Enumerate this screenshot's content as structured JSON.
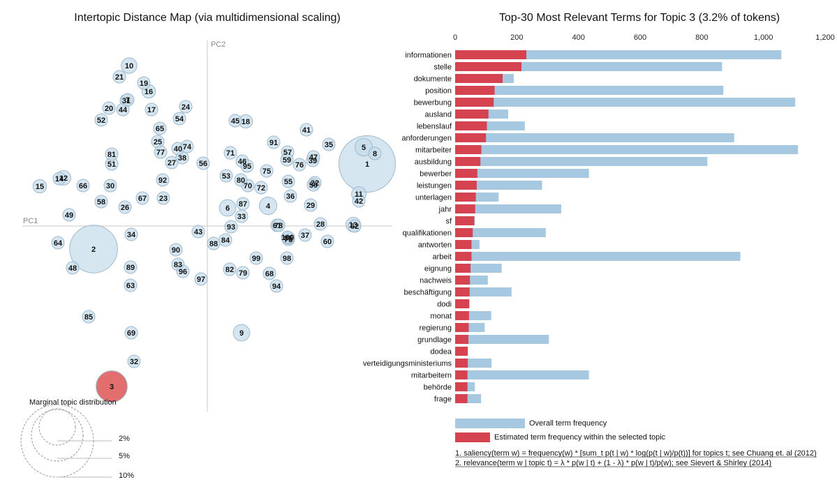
{
  "left_panel": {
    "title": "Intertopic Distance Map (via multidimensional scaling)",
    "pc1": "PC1",
    "pc2": "PC2",
    "marginal_title": "Marginal topic distribution",
    "marginal_labels": [
      "2%",
      "5%",
      "10%"
    ],
    "selected_topic": 3,
    "colors": {
      "bubble": "#c5dbea",
      "bubble_stroke": "#9fb8cc",
      "selected": "#e06666"
    }
  },
  "right_panel": {
    "title": "Top-30 Most Relevant Terms for Topic 3 (3.2% of tokens)",
    "legend_overall": "Overall term frequency",
    "legend_estimated": "Estimated term frequency within the selected topic",
    "footnote1": "1. saliency(term w) = frequency(w) * [sum_t p(t | w) * log(p(t | w)/p(t))] for topics t; see Chuang et. al (2012)",
    "footnote2": "2. relevance(term w | topic t) = λ * p(w | t) + (1 - λ) * p(w | t)/p(w); see Sievert & Shirley (2014)",
    "colors": {
      "overall": "#a6c8e0",
      "estimated": "#d4434f"
    }
  },
  "chart_data": [
    {
      "type": "scatter",
      "title": "Intertopic Distance Map (via multidimensional scaling)",
      "xlabel": "PC1",
      "ylabel": "PC2",
      "points": [
        {
          "topic": "1",
          "x": 229,
          "y": 89,
          "size": 10.5
        },
        {
          "topic": "2",
          "x": -163,
          "y": -33,
          "size": 7.5
        },
        {
          "topic": "3",
          "x": -137,
          "y": -230,
          "size": 3.2
        },
        {
          "topic": "4",
          "x": 87,
          "y": 29,
          "size": 1.0
        },
        {
          "topic": "5",
          "x": 224,
          "y": 113,
          "size": 1.0
        },
        {
          "topic": "6",
          "x": 29,
          "y": 26,
          "size": 0.9
        },
        {
          "topic": "7",
          "x": -114,
          "y": 181,
          "size": 0.3
        },
        {
          "topic": "8",
          "x": 240,
          "y": 104,
          "size": 0.4
        },
        {
          "topic": "9",
          "x": 49,
          "y": -153,
          "size": 0.9
        },
        {
          "topic": "10",
          "x": -112,
          "y": 230,
          "size": 0.8
        },
        {
          "topic": "11",
          "x": 217,
          "y": 46,
          "size": 0.7
        },
        {
          "topic": "12",
          "x": -206,
          "y": 69,
          "size": 0.7
        },
        {
          "topic": "13",
          "x": 209,
          "y": 2,
          "size": 0.7
        },
        {
          "topic": "14",
          "x": -212,
          "y": 68,
          "size": 0.5
        },
        {
          "topic": "15",
          "x": -240,
          "y": 57,
          "size": 0.6
        },
        {
          "topic": "16",
          "x": -84,
          "y": 193,
          "size": 0.6
        },
        {
          "topic": "17",
          "x": -80,
          "y": 167,
          "size": 0.5
        },
        {
          "topic": "18",
          "x": 55,
          "y": 150,
          "size": 0.6
        },
        {
          "topic": "19",
          "x": -91,
          "y": 205,
          "size": 0.5
        },
        {
          "topic": "20",
          "x": -141,
          "y": 169,
          "size": 0.4
        },
        {
          "topic": "21",
          "x": -126,
          "y": 214,
          "size": 0.5
        },
        {
          "topic": "22",
          "x": 154,
          "y": 62,
          "size": 0.5
        },
        {
          "topic": "23",
          "x": -63,
          "y": 40,
          "size": 0.5
        },
        {
          "topic": "24",
          "x": -31,
          "y": 171,
          "size": 0.5
        },
        {
          "topic": "25",
          "x": -71,
          "y": 121,
          "size": 0.4
        },
        {
          "topic": "26",
          "x": -118,
          "y": 27,
          "size": 0.5
        },
        {
          "topic": "27",
          "x": -51,
          "y": 91,
          "size": 0.4
        },
        {
          "topic": "28",
          "x": 162,
          "y": 3,
          "size": 0.4
        },
        {
          "topic": "29",
          "x": 148,
          "y": 30,
          "size": 0.4
        },
        {
          "topic": "30",
          "x": -139,
          "y": 58,
          "size": 0.5
        },
        {
          "topic": "31",
          "x": -116,
          "y": 180,
          "size": 0.4
        },
        {
          "topic": "32",
          "x": -105,
          "y": -194,
          "size": 0.4
        },
        {
          "topic": "33",
          "x": 49,
          "y": 14,
          "size": 0.4
        },
        {
          "topic": "34",
          "x": -109,
          "y": -12,
          "size": 0.3
        },
        {
          "topic": "35",
          "x": 174,
          "y": 117,
          "size": 0.4
        },
        {
          "topic": "36",
          "x": 119,
          "y": 43,
          "size": 0.4
        },
        {
          "topic": "37",
          "x": 140,
          "y": -13,
          "size": 0.4
        },
        {
          "topic": "38",
          "x": -36,
          "y": 98,
          "size": 0.3
        },
        {
          "topic": "39",
          "x": 151,
          "y": 94,
          "size": 0.4
        },
        {
          "topic": "40",
          "x": -42,
          "y": 111,
          "size": 0.3
        },
        {
          "topic": "41",
          "x": 142,
          "y": 138,
          "size": 0.3
        },
        {
          "topic": "42",
          "x": 217,
          "y": 36,
          "size": 0.3
        },
        {
          "topic": "43",
          "x": -13,
          "y": -8,
          "size": 0.3
        },
        {
          "topic": "44",
          "x": -121,
          "y": 167,
          "size": 0.4
        },
        {
          "topic": "45",
          "x": 40,
          "y": 151,
          "size": 0.3
        },
        {
          "topic": "46",
          "x": 50,
          "y": 93,
          "size": 0.3
        },
        {
          "topic": "47",
          "x": 152,
          "y": 99,
          "size": 0.3
        },
        {
          "topic": "48",
          "x": -193,
          "y": -60,
          "size": 0.3
        },
        {
          "topic": "49",
          "x": -198,
          "y": 16,
          "size": 0.3
        },
        {
          "topic": "50",
          "x": 152,
          "y": 59,
          "size": 0.4
        },
        {
          "topic": "51",
          "x": -137,
          "y": 89,
          "size": 0.2
        },
        {
          "topic": "52",
          "x": -152,
          "y": 152,
          "size": 0.3
        },
        {
          "topic": "53",
          "x": 27,
          "y": 72,
          "size": 0.3
        },
        {
          "topic": "54",
          "x": -40,
          "y": 154,
          "size": 0.2
        },
        {
          "topic": "55",
          "x": 116,
          "y": 64,
          "size": 0.3
        },
        {
          "topic": "56",
          "x": -6,
          "y": 90,
          "size": 0.3
        },
        {
          "topic": "57",
          "x": 115,
          "y": 106,
          "size": 0.2
        },
        {
          "topic": "58",
          "x": -152,
          "y": 35,
          "size": 0.3
        },
        {
          "topic": "59",
          "x": 114,
          "y": 95,
          "size": 0.2
        },
        {
          "topic": "60",
          "x": 172,
          "y": -22,
          "size": 0.3
        },
        {
          "topic": "61",
          "x": 100,
          "y": 1,
          "size": 0.2
        },
        {
          "topic": "62",
          "x": 211,
          "y": 0,
          "size": 0.3
        },
        {
          "topic": "63",
          "x": -110,
          "y": -85,
          "size": 0.3
        },
        {
          "topic": "64",
          "x": -214,
          "y": -24,
          "size": 0.3
        },
        {
          "topic": "65",
          "x": -68,
          "y": 140,
          "size": 0.2
        },
        {
          "topic": "66",
          "x": -178,
          "y": 58,
          "size": 0.3
        },
        {
          "topic": "67",
          "x": -93,
          "y": 40,
          "size": 0.3
        },
        {
          "topic": "68",
          "x": 89,
          "y": -68,
          "size": 0.3
        },
        {
          "topic": "69",
          "x": -109,
          "y": -153,
          "size": 0.3
        },
        {
          "topic": "70",
          "x": 58,
          "y": 58,
          "size": 0.2
        },
        {
          "topic": "71",
          "x": 33,
          "y": 105,
          "size": 0.2
        },
        {
          "topic": "72",
          "x": 77,
          "y": 55,
          "size": 0.2
        },
        {
          "topic": "73",
          "x": 116,
          "y": -19,
          "size": 0.2
        },
        {
          "topic": "74",
          "x": -29,
          "y": 114,
          "size": 0.2
        },
        {
          "topic": "75",
          "x": 85,
          "y": 79,
          "size": 0.2
        },
        {
          "topic": "76",
          "x": 132,
          "y": 88,
          "size": 0.2
        },
        {
          "topic": "77",
          "x": -67,
          "y": 106,
          "size": 0.2
        },
        {
          "topic": "78",
          "x": 102,
          "y": 1,
          "size": 0.2
        },
        {
          "topic": "79",
          "x": 51,
          "y": -67,
          "size": 0.2
        },
        {
          "topic": "80",
          "x": 48,
          "y": 66,
          "size": 0.2
        },
        {
          "topic": "81",
          "x": -137,
          "y": 103,
          "size": 0.2
        },
        {
          "topic": "82",
          "x": 32,
          "y": -62,
          "size": 0.2
        },
        {
          "topic": "83",
          "x": -42,
          "y": -55,
          "size": 0.2
        },
        {
          "topic": "84",
          "x": 26,
          "y": -20,
          "size": 0.2
        },
        {
          "topic": "85",
          "x": -170,
          "y": -130,
          "size": 0.2
        },
        {
          "topic": "86",
          "x": 116,
          "y": -17,
          "size": 0.2
        },
        {
          "topic": "87",
          "x": 51,
          "y": 32,
          "size": 0.2
        },
        {
          "topic": "88",
          "x": 9,
          "y": -25,
          "size": 0.2
        },
        {
          "topic": "89",
          "x": -110,
          "y": -59,
          "size": 0.2
        },
        {
          "topic": "90",
          "x": -45,
          "y": -34,
          "size": 0.1
        },
        {
          "topic": "91",
          "x": 95,
          "y": 120,
          "size": 0.1
        },
        {
          "topic": "92",
          "x": -64,
          "y": 66,
          "size": 0.2
        },
        {
          "topic": "93",
          "x": 34,
          "y": -1,
          "size": 0.1
        },
        {
          "topic": "94",
          "x": 99,
          "y": -86,
          "size": 0.1
        },
        {
          "topic": "95",
          "x": 57,
          "y": 86,
          "size": 0.1
        },
        {
          "topic": "96",
          "x": -35,
          "y": -65,
          "size": 0.1
        },
        {
          "topic": "97",
          "x": -9,
          "y": -76,
          "size": 0.1
        },
        {
          "topic": "98",
          "x": 114,
          "y": -46,
          "size": 0.1
        },
        {
          "topic": "99",
          "x": 70,
          "y": -46,
          "size": 0.1
        },
        {
          "topic": "100",
          "x": 115,
          "y": -16,
          "size": 0.1
        }
      ]
    },
    {
      "type": "bar",
      "title": "Top-30 Most Relevant Terms for Topic 3 (3.2% of tokens)",
      "orientation": "horizontal",
      "xlim": [
        0,
        1200
      ],
      "xticks": [
        "0",
        "200",
        "400",
        "600",
        "800",
        "1,000",
        "1,200"
      ],
      "categories": [
        "informationen",
        "stelle",
        "dokumente",
        "position",
        "bewerbung",
        "ausland",
        "lebenslauf",
        "anforderungen",
        "mitarbeiter",
        "ausbildung",
        "bewerber",
        "leistungen",
        "unterlagen",
        "jahr",
        "sf",
        "qualifikationen",
        "antworten",
        "arbeit",
        "eignung",
        "nachweis",
        "beschäftigung",
        "dodi",
        "monat",
        "regierung",
        "grundlage",
        "dodea",
        "verteidigungsministeriums",
        "mitarbeitern",
        "behörde",
        "frage"
      ],
      "series": [
        {
          "name": "Overall term frequency",
          "values": [
            1058,
            866,
            190,
            870,
            1103,
            172,
            226,
            905,
            1112,
            818,
            434,
            282,
            141,
            344,
            64,
            294,
            79,
            925,
            151,
            106,
            183,
            43,
            117,
            96,
            304,
            40,
            118,
            434,
            64,
            84
          ]
        },
        {
          "name": "Estimated term frequency within the selected topic",
          "values": [
            231,
            215,
            154,
            128,
            125,
            108,
            103,
            100,
            85,
            82,
            72,
            70,
            67,
            65,
            62,
            57,
            53,
            53,
            50,
            48,
            47,
            46,
            45,
            44,
            43,
            41,
            41,
            40,
            40,
            40
          ]
        }
      ]
    }
  ]
}
